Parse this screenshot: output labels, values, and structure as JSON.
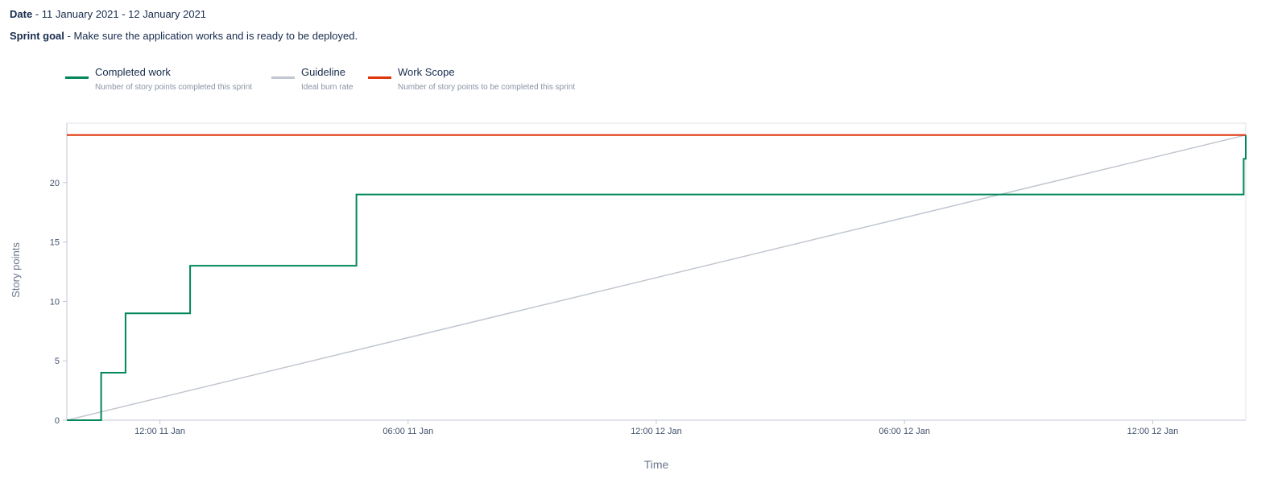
{
  "header": {
    "date_label": "Date",
    "date_value": " - 11 January 2021 - 12 January 2021",
    "goal_label": "Sprint goal",
    "goal_value": " - Make sure the application works and is ready to be deployed."
  },
  "legend": [
    {
      "title": "Completed work",
      "description": "Number of story points completed this sprint",
      "color": "#00875a"
    },
    {
      "title": "Guideline",
      "description": "Ideal burn rate",
      "color": "#c1c7d0"
    },
    {
      "title": "Work Scope",
      "description": "Number of story points to be completed this sprint",
      "color": "#de350b"
    }
  ],
  "chart_data": {
    "type": "line",
    "xlabel": "Time",
    "ylabel": "Story points",
    "x_unit": "hours since sprint start",
    "xlim": [
      0,
      28.5
    ],
    "ylim": [
      0,
      25
    ],
    "grid": false,
    "legend_position": "top-left",
    "y_ticks": [
      0,
      5,
      10,
      15,
      20
    ],
    "x_ticks": [
      {
        "x": 2.25,
        "label": "12:00 11 Jan"
      },
      {
        "x": 8.25,
        "label": "06:00 11 Jan"
      },
      {
        "x": 14.25,
        "label": "12:00 12 Jan"
      },
      {
        "x": 20.25,
        "label": "06:00 12 Jan"
      },
      {
        "x": 26.25,
        "label": "12:00 12 Jan"
      }
    ],
    "series": [
      {
        "name": "Completed work",
        "color": "#00875a",
        "step": true,
        "points": [
          [
            0,
            0
          ],
          [
            0.83,
            0
          ],
          [
            0.83,
            4
          ],
          [
            1.42,
            4
          ],
          [
            1.42,
            9
          ],
          [
            2.98,
            9
          ],
          [
            2.98,
            13
          ],
          [
            7.0,
            13
          ],
          [
            7.0,
            19
          ],
          [
            28.45,
            19
          ],
          [
            28.45,
            22
          ],
          [
            28.5,
            22
          ],
          [
            28.5,
            24
          ]
        ]
      },
      {
        "name": "Guideline",
        "color": "#c1c7d0",
        "points": [
          [
            0,
            0
          ],
          [
            28.5,
            24
          ]
        ]
      },
      {
        "name": "Work Scope",
        "color": "#de350b",
        "points": [
          [
            0,
            24
          ],
          [
            28.5,
            24
          ]
        ]
      }
    ]
  }
}
